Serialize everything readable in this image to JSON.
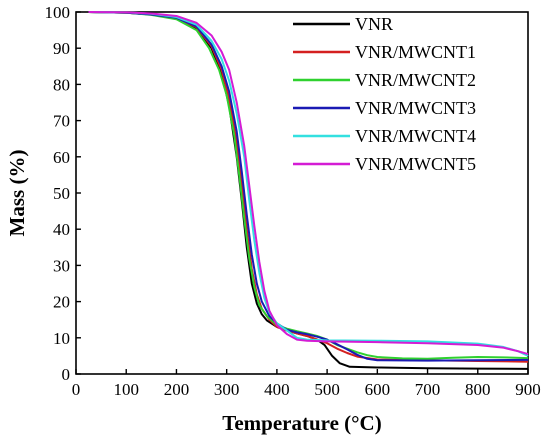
{
  "chart_data": {
    "type": "line",
    "title": "",
    "xlabel": "Temperature (°C)",
    "ylabel": "Mass (%)",
    "xlim": [
      0,
      900
    ],
    "ylim": [
      0,
      100
    ],
    "xticks": [
      0,
      100,
      200,
      300,
      400,
      500,
      600,
      700,
      800,
      900
    ],
    "yticks": [
      0,
      10,
      20,
      30,
      40,
      50,
      60,
      70,
      80,
      90,
      100
    ],
    "grid": false,
    "legend_position": "top-right",
    "series": [
      {
        "name": "VNR",
        "color": "#000000",
        "points": [
          [
            25,
            100
          ],
          [
            100,
            99.8
          ],
          [
            150,
            99.3
          ],
          [
            200,
            98.2
          ],
          [
            240,
            95.5
          ],
          [
            270,
            90
          ],
          [
            290,
            83
          ],
          [
            305,
            74
          ],
          [
            320,
            60
          ],
          [
            330,
            48
          ],
          [
            340,
            35
          ],
          [
            350,
            25
          ],
          [
            360,
            19.5
          ],
          [
            370,
            16.5
          ],
          [
            380,
            14.8
          ],
          [
            400,
            13
          ],
          [
            420,
            12
          ],
          [
            440,
            11.2
          ],
          [
            460,
            10.5
          ],
          [
            480,
            9.5
          ],
          [
            495,
            8
          ],
          [
            510,
            5
          ],
          [
            525,
            3
          ],
          [
            545,
            2
          ],
          [
            600,
            1.8
          ],
          [
            700,
            1.6
          ],
          [
            800,
            1.5
          ],
          [
            900,
            1.4
          ]
        ]
      },
      {
        "name": "VNR/MWCNT1",
        "color": "#d42020",
        "points": [
          [
            25,
            100
          ],
          [
            100,
            99.8
          ],
          [
            150,
            99.3
          ],
          [
            200,
            98.3
          ],
          [
            240,
            95.8
          ],
          [
            270,
            90.5
          ],
          [
            290,
            84
          ],
          [
            305,
            76
          ],
          [
            320,
            64
          ],
          [
            330,
            52
          ],
          [
            340,
            40
          ],
          [
            350,
            29
          ],
          [
            360,
            22
          ],
          [
            370,
            18
          ],
          [
            385,
            15
          ],
          [
            400,
            13
          ],
          [
            420,
            12
          ],
          [
            440,
            11.2
          ],
          [
            460,
            10.5
          ],
          [
            480,
            9.5
          ],
          [
            500,
            8.5
          ],
          [
            520,
            7
          ],
          [
            540,
            5.8
          ],
          [
            560,
            4.8
          ],
          [
            600,
            4
          ],
          [
            700,
            3.8
          ],
          [
            800,
            3.6
          ],
          [
            900,
            3.4
          ]
        ]
      },
      {
        "name": "VNR/MWCNT2",
        "color": "#2fd12f",
        "points": [
          [
            25,
            100
          ],
          [
            100,
            99.8
          ],
          [
            150,
            99.2
          ],
          [
            200,
            98
          ],
          [
            240,
            95
          ],
          [
            265,
            90
          ],
          [
            285,
            84
          ],
          [
            300,
            77
          ],
          [
            315,
            66
          ],
          [
            325,
            55
          ],
          [
            335,
            43
          ],
          [
            345,
            32
          ],
          [
            355,
            24
          ],
          [
            365,
            19
          ],
          [
            380,
            16
          ],
          [
            400,
            13.5
          ],
          [
            420,
            12.5
          ],
          [
            440,
            11.8
          ],
          [
            460,
            11.2
          ],
          [
            480,
            10.5
          ],
          [
            500,
            9.5
          ],
          [
            520,
            8
          ],
          [
            540,
            7
          ],
          [
            560,
            6
          ],
          [
            580,
            5.2
          ],
          [
            600,
            4.7
          ],
          [
            650,
            4.3
          ],
          [
            700,
            4.2
          ],
          [
            750,
            4.5
          ],
          [
            800,
            4.7
          ],
          [
            850,
            4.6
          ],
          [
            900,
            4.4
          ]
        ]
      },
      {
        "name": "VNR/MWCNT3",
        "color": "#1a1ab4",
        "points": [
          [
            25,
            100
          ],
          [
            100,
            99.8
          ],
          [
            150,
            99.3
          ],
          [
            200,
            98.4
          ],
          [
            240,
            96
          ],
          [
            270,
            91
          ],
          [
            290,
            85
          ],
          [
            305,
            78
          ],
          [
            320,
            67
          ],
          [
            330,
            56
          ],
          [
            340,
            44
          ],
          [
            350,
            33
          ],
          [
            360,
            25
          ],
          [
            370,
            20
          ],
          [
            385,
            16
          ],
          [
            400,
            14
          ],
          [
            420,
            12.2
          ],
          [
            440,
            11.5
          ],
          [
            460,
            11
          ],
          [
            480,
            10.3
          ],
          [
            500,
            9.5
          ],
          [
            520,
            8.2
          ],
          [
            540,
            6.8
          ],
          [
            560,
            5.3
          ],
          [
            580,
            4.2
          ],
          [
            600,
            3.8
          ],
          [
            700,
            3.7
          ],
          [
            800,
            3.8
          ],
          [
            900,
            3.9
          ]
        ]
      },
      {
        "name": "VNR/MWCNT4",
        "color": "#33e0e0",
        "points": [
          [
            25,
            100
          ],
          [
            100,
            99.9
          ],
          [
            150,
            99.5
          ],
          [
            200,
            98.6
          ],
          [
            240,
            96.5
          ],
          [
            270,
            92
          ],
          [
            290,
            87
          ],
          [
            305,
            81
          ],
          [
            320,
            72
          ],
          [
            335,
            60
          ],
          [
            345,
            48
          ],
          [
            355,
            37
          ],
          [
            365,
            28
          ],
          [
            375,
            21
          ],
          [
            385,
            17
          ],
          [
            400,
            14
          ],
          [
            420,
            12
          ],
          [
            440,
            10
          ],
          [
            460,
            9.5
          ],
          [
            500,
            9.3
          ],
          [
            600,
            9.2
          ],
          [
            700,
            9
          ],
          [
            800,
            8.4
          ],
          [
            850,
            7.5
          ],
          [
            880,
            6.3
          ],
          [
            900,
            5
          ]
        ]
      },
      {
        "name": "VNR/MWCNT5",
        "color": "#d41cd4",
        "points": [
          [
            25,
            100
          ],
          [
            100,
            99.9
          ],
          [
            150,
            99.6
          ],
          [
            200,
            98.9
          ],
          [
            240,
            97
          ],
          [
            270,
            93.5
          ],
          [
            290,
            89
          ],
          [
            305,
            84
          ],
          [
            320,
            75
          ],
          [
            335,
            63
          ],
          [
            345,
            52
          ],
          [
            355,
            41
          ],
          [
            365,
            31
          ],
          [
            375,
            23
          ],
          [
            385,
            17.5
          ],
          [
            400,
            13.5
          ],
          [
            420,
            11
          ],
          [
            440,
            9.5
          ],
          [
            460,
            9.2
          ],
          [
            500,
            9
          ],
          [
            600,
            8.8
          ],
          [
            700,
            8.5
          ],
          [
            800,
            8
          ],
          [
            850,
            7.3
          ],
          [
            880,
            6.3
          ],
          [
            900,
            5.5
          ]
        ]
      }
    ]
  }
}
